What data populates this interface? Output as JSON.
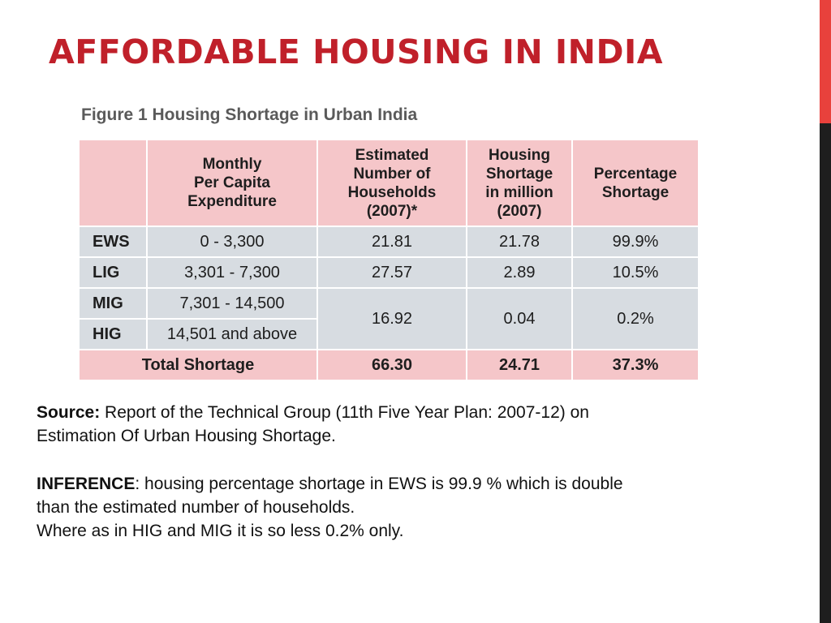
{
  "slide": {
    "title": "AFFORDABLE HOUSING IN INDIA",
    "accent_color": "#e8413c",
    "dark_bar_color": "#1e1e1e",
    "title_color": "#c0202a"
  },
  "figure": {
    "caption": "Figure 1 Housing Shortage in Urban India",
    "header_fill": "#f5c6c9",
    "body_fill": "#d7dce1",
    "headers": {
      "col0": "",
      "col1": [
        "Monthly",
        "Per Capita",
        "Expenditure"
      ],
      "col2": [
        "Estimated",
        "Number of",
        "Households",
        "(2007)*"
      ],
      "col3": [
        "Housing",
        "Shortage",
        "in million",
        "(2007)"
      ],
      "col4": [
        "Percentage",
        "Shortage"
      ]
    },
    "rows": [
      {
        "group": "EWS",
        "mpce": "0 - 3,300",
        "households": "21.81",
        "shortage_million": "21.78",
        "percentage": "99.9%"
      },
      {
        "group": "LIG",
        "mpce": "3,301 - 7,300",
        "households": "27.57",
        "shortage_million": "2.89",
        "percentage": "10.5%"
      },
      {
        "group": "MIG",
        "mpce": "7,301 - 14,500"
      },
      {
        "group": "HIG",
        "mpce": "14,501 and above"
      }
    ],
    "merged_mig_hig": {
      "households": "16.92",
      "shortage_million": "0.04",
      "percentage": "0.2%"
    },
    "total": {
      "label": "Total Shortage",
      "households": "66.30",
      "shortage_million": "24.71",
      "percentage": "37.3%"
    }
  },
  "notes": {
    "source_label": "Source:",
    "source_text": " Report of the Technical Group (11th Five Year Plan: 2007-12) on",
    "source_text_2": "Estimation Of Urban Housing Shortage.",
    "inference_label": "INFERENCE",
    "inference_text": ": housing percentage shortage in EWS  is 99.9 % which is double",
    "inference_text_2": "than the estimated number of households.",
    "inference_text_3": "Where as in HIG and MIG it is so less 0.2% only."
  }
}
